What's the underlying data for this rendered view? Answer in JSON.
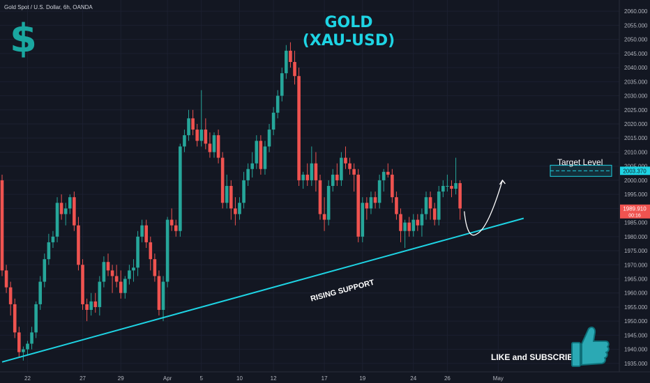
{
  "header": {
    "symbol": "Gold Spot / U.S. Dollar, 6h, OANDA",
    "title_line1": "GOLD",
    "title_line2": "(XAU-USD)",
    "dollar_sign": "$"
  },
  "annotations": {
    "target_label": "Target Level",
    "support_label": "RISING SUPPORT",
    "subscribe": "LIKE and SUBSCRIBE",
    "thumb_icon": "thumbs-up-icon"
  },
  "colors": {
    "background": "#131722",
    "up": "#26a69a",
    "down": "#ef5350",
    "support_line": "#1ed4e4",
    "accent": "#1aa7a0",
    "price_tag": "#ef5350",
    "target_tag": "#1ed4e4"
  },
  "chart_data": {
    "type": "candlestick",
    "timeframe": "6h",
    "ylim": [
      1932,
      2064
    ],
    "y_ticks": [
      1935,
      1940,
      1945,
      1950,
      1955,
      1960,
      1965,
      1970,
      1975,
      1980,
      1985,
      1990,
      1995,
      2000,
      2005,
      2010,
      2015,
      2020,
      2025,
      2030,
      2035,
      2040,
      2045,
      2050,
      2055,
      2060
    ],
    "y_tick_labels": [
      "1935.000",
      "1940.000",
      "1945.000",
      "1950.000",
      "1955.000",
      "1960.000",
      "1965.000",
      "1970.000",
      "1975.000",
      "1980.000",
      "1985.000",
      "1990.000",
      "1995.000",
      "2000.000",
      "2005.000",
      "2010.000",
      "2015.000",
      "2020.000",
      "2025.000",
      "2030.000",
      "2035.000",
      "2040.000",
      "2045.000",
      "2050.000",
      "2055.000",
      "2060.000"
    ],
    "x_labels": [
      "22",
      "27",
      "29",
      "Apr",
      "5",
      "10",
      "12",
      "17",
      "19",
      "24",
      "26",
      "May"
    ],
    "x_label_bars": [
      6,
      19,
      28,
      39,
      47,
      56,
      64,
      76,
      85,
      97,
      105,
      117
    ],
    "current_price": "1989.910",
    "current_price_sub": "00:16",
    "target_price": "2003.370",
    "target_level": 2003.37,
    "support_line": {
      "start_bar": 0,
      "start_price": 1935.5,
      "end_bar": 123,
      "end_price": 1986.5
    },
    "projection": {
      "from_bar": 109,
      "from_price": 1989,
      "low_bar": 112,
      "low_price": 1981,
      "to_bar": 118,
      "to_price": 2000
    },
    "candles": [
      [
        2000,
        2002,
        1966,
        1968
      ],
      [
        1968,
        1970,
        1960,
        1962
      ],
      [
        1962,
        1964,
        1952,
        1956
      ],
      [
        1956,
        1958,
        1944,
        1946
      ],
      [
        1946,
        1948,
        1937,
        1939
      ],
      [
        1939,
        1941,
        1936,
        1940
      ],
      [
        1940,
        1943,
        1938,
        1942
      ],
      [
        1942,
        1948,
        1940,
        1946
      ],
      [
        1946,
        1957,
        1944,
        1956
      ],
      [
        1956,
        1966,
        1954,
        1964
      ],
      [
        1964,
        1974,
        1962,
        1972
      ],
      [
        1972,
        1981,
        1970,
        1978
      ],
      [
        1978,
        1982,
        1976,
        1980
      ],
      [
        1980,
        1994,
        1978,
        1992
      ],
      [
        1992,
        1995,
        1986,
        1988
      ],
      [
        1988,
        1992,
        1984,
        1990
      ],
      [
        1990,
        1995,
        1988,
        1994
      ],
      [
        1994,
        1996,
        1982,
        1984
      ],
      [
        1984,
        1987,
        1968,
        1970
      ],
      [
        1970,
        1972,
        1954,
        1956
      ],
      [
        1956,
        1958,
        1950,
        1954
      ],
      [
        1954,
        1960,
        1952,
        1957
      ],
      [
        1957,
        1960,
        1953,
        1955
      ],
      [
        1955,
        1966,
        1952,
        1964
      ],
      [
        1964,
        1973,
        1962,
        1971
      ],
      [
        1971,
        1974,
        1966,
        1968
      ],
      [
        1968,
        1970,
        1960,
        1966
      ],
      [
        1966,
        1970,
        1962,
        1964
      ],
      [
        1964,
        1968,
        1958,
        1960
      ],
      [
        1960,
        1966,
        1958,
        1965
      ],
      [
        1965,
        1970,
        1963,
        1968
      ],
      [
        1968,
        1972,
        1964,
        1969
      ],
      [
        1969,
        1982,
        1966,
        1980
      ],
      [
        1980,
        1986,
        1978,
        1984
      ],
      [
        1984,
        1986,
        1976,
        1978
      ],
      [
        1978,
        1980,
        1968,
        1972
      ],
      [
        1972,
        1974,
        1964,
        1966
      ],
      [
        1966,
        1968,
        1952,
        1954
      ],
      [
        1954,
        1966,
        1950,
        1964
      ],
      [
        1964,
        1987,
        1962,
        1986
      ],
      [
        1986,
        1990,
        1982,
        1984
      ],
      [
        1984,
        1986,
        1980,
        1982
      ],
      [
        1982,
        2013,
        1980,
        2012
      ],
      [
        2012,
        2018,
        2010,
        2016
      ],
      [
        2016,
        2025,
        2014,
        2022
      ],
      [
        2022,
        2025,
        2016,
        2018
      ],
      [
        2018,
        2020,
        2012,
        2014
      ],
      [
        2014,
        2032,
        2012,
        2018
      ],
      [
        2018,
        2022,
        2011,
        2013
      ],
      [
        2013,
        2017,
        2008,
        2010
      ],
      [
        2010,
        2017,
        2008,
        2016
      ],
      [
        2016,
        2018,
        2006,
        2008
      ],
      [
        2008,
        2010,
        1990,
        1992
      ],
      [
        1992,
        2002,
        1990,
        1998
      ],
      [
        1998,
        2000,
        1986,
        1990
      ],
      [
        1990,
        1994,
        1984,
        1988
      ],
      [
        1988,
        1994,
        1986,
        1992
      ],
      [
        1992,
        2003,
        1990,
        2000
      ],
      [
        2000,
        2006,
        1998,
        2004
      ],
      [
        2004,
        2010,
        2001,
        2006
      ],
      [
        2006,
        2016,
        2004,
        2014
      ],
      [
        2014,
        2016,
        2002,
        2004
      ],
      [
        2004,
        2014,
        2002,
        2012
      ],
      [
        2012,
        2020,
        2010,
        2018
      ],
      [
        2018,
        2026,
        2016,
        2024
      ],
      [
        2024,
        2032,
        2022,
        2030
      ],
      [
        2030,
        2040,
        2028,
        2038
      ],
      [
        2038,
        2048,
        2036,
        2046
      ],
      [
        2046,
        2049,
        2040,
        2042
      ],
      [
        2042,
        2046,
        2034,
        2037
      ],
      [
        2037,
        2040,
        1998,
        2000
      ],
      [
        2000,
        2003,
        1997,
        2002
      ],
      [
        2002,
        2006,
        1998,
        2000
      ],
      [
        2000,
        2012,
        1998,
        2006
      ],
      [
        2006,
        2010,
        1996,
        2000
      ],
      [
        2000,
        2002,
        1986,
        1988
      ],
      [
        1988,
        1994,
        1982,
        1986
      ],
      [
        1986,
        2000,
        1984,
        1998
      ],
      [
        1998,
        2004,
        1996,
        2002
      ],
      [
        2002,
        2006,
        1998,
        2000
      ],
      [
        2000,
        2010,
        1998,
        2008
      ],
      [
        2008,
        2012,
        2004,
        2006
      ],
      [
        2006,
        2008,
        2002,
        2004
      ],
      [
        2004,
        2006,
        1996,
        2002
      ],
      [
        2002,
        2004,
        1978,
        1980
      ],
      [
        1980,
        1994,
        1978,
        1992
      ],
      [
        1992,
        1994,
        1986,
        1990
      ],
      [
        1990,
        1996,
        1988,
        1994
      ],
      [
        1994,
        1996,
        1990,
        1992
      ],
      [
        1992,
        2002,
        1990,
        2000
      ],
      [
        2000,
        2004,
        1996,
        2003
      ],
      [
        2003,
        2006,
        2001,
        2002
      ],
      [
        2002,
        2004,
        1992,
        1994
      ],
      [
        1994,
        1996,
        1986,
        1988
      ],
      [
        1988,
        1990,
        1978,
        1982
      ],
      [
        1982,
        1986,
        1976,
        1985
      ],
      [
        1985,
        1987,
        1980,
        1982
      ],
      [
        1982,
        1988,
        1980,
        1986
      ],
      [
        1986,
        1988,
        1982,
        1984
      ],
      [
        1984,
        1990,
        1980,
        1988
      ],
      [
        1988,
        1996,
        1986,
        1994
      ],
      [
        1994,
        1996,
        1986,
        1990
      ],
      [
        1990,
        1992,
        1984,
        1986
      ],
      [
        1986,
        1998,
        1984,
        1996
      ],
      [
        1996,
        2000,
        1994,
        1998
      ],
      [
        1998,
        2002,
        1996,
        1998
      ],
      [
        1998,
        2000,
        1994,
        1997
      ],
      [
        1997,
        2008,
        1995,
        1999
      ],
      [
        1999,
        2000,
        1986,
        1990
      ]
    ]
  }
}
